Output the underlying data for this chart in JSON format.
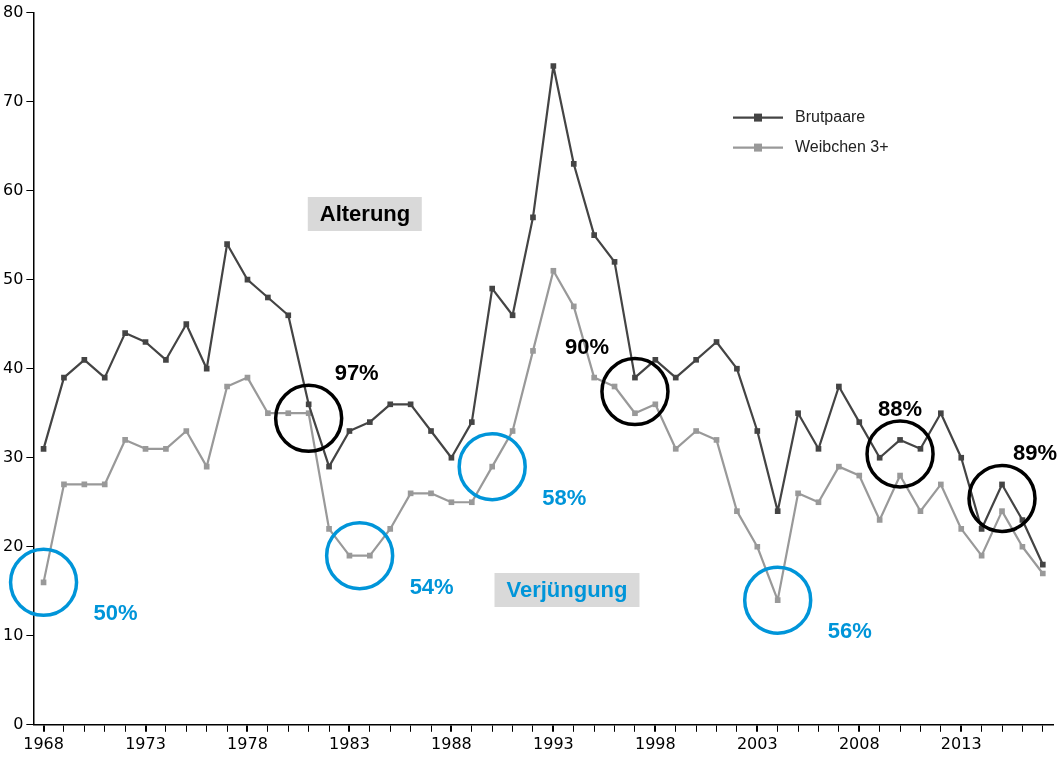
{
  "chart_data": {
    "type": "line",
    "x": [
      1968,
      1969,
      1970,
      1971,
      1972,
      1973,
      1974,
      1975,
      1976,
      1977,
      1978,
      1979,
      1980,
      1981,
      1982,
      1983,
      1984,
      1985,
      1986,
      1987,
      1988,
      1989,
      1990,
      1991,
      1992,
      1993,
      1994,
      1995,
      1996,
      1997,
      1998,
      1999,
      2000,
      2001,
      2002,
      2003,
      2004,
      2005,
      2006,
      2007,
      2008,
      2009,
      2010,
      2011,
      2012,
      2013,
      2014,
      2015,
      2016,
      2017
    ],
    "series": [
      {
        "name": "Brutpaare",
        "color": "#444444",
        "values": [
          31,
          39,
          41,
          39,
          44,
          43,
          41,
          45,
          40,
          54,
          50,
          48,
          46,
          36,
          29,
          33,
          34,
          36,
          36,
          33,
          30,
          34,
          49,
          46,
          57,
          74,
          63,
          55,
          52,
          39,
          41,
          39,
          41,
          43,
          40,
          33,
          24,
          35,
          31,
          38,
          34,
          30,
          32,
          31,
          35,
          30,
          22,
          27,
          23,
          18
        ]
      },
      {
        "name": "Weibchen 3+",
        "color": "#999999",
        "values": [
          16,
          27,
          27,
          27,
          32,
          31,
          31,
          33,
          29,
          38,
          39,
          35,
          35,
          35,
          22,
          19,
          19,
          22,
          26,
          26,
          25,
          25,
          29,
          33,
          42,
          51,
          47,
          39,
          38,
          35,
          36,
          31,
          33,
          32,
          24,
          20,
          14,
          26,
          25,
          29,
          28,
          23,
          28,
          24,
          27,
          22,
          19,
          24,
          20,
          17
        ]
      }
    ],
    "xlim": [
      1967.5,
      2017.5
    ],
    "xticks": [
      1968,
      {
        "value": 1969,
        "label": null
      },
      {
        "value": 1970,
        "label": null
      },
      {
        "value": 1971,
        "label": null
      },
      {
        "value": 1972,
        "label": null
      },
      1973,
      {
        "value": 1974,
        "label": null
      },
      {
        "value": 1975,
        "label": null
      },
      {
        "value": 1976,
        "label": null
      },
      {
        "value": 1977,
        "label": null
      },
      1978,
      {
        "value": 1979,
        "label": null
      },
      {
        "value": 1980,
        "label": null
      },
      {
        "value": 1981,
        "label": null
      },
      {
        "value": 1982,
        "label": null
      },
      1983,
      {
        "value": 1984,
        "label": null
      },
      {
        "value": 1985,
        "label": null
      },
      {
        "value": 1986,
        "label": null
      },
      {
        "value": 1987,
        "label": null
      },
      1988,
      {
        "value": 1989,
        "label": null
      },
      {
        "value": 1990,
        "label": null
      },
      {
        "value": 1991,
        "label": null
      },
      {
        "value": 1992,
        "label": null
      },
      1993,
      {
        "value": 1994,
        "label": null
      },
      {
        "value": 1995,
        "label": null
      },
      {
        "value": 1996,
        "label": null
      },
      {
        "value": 1997,
        "label": null
      },
      1998,
      {
        "value": 1999,
        "label": null
      },
      {
        "value": 2000,
        "label": null
      },
      {
        "value": 2001,
        "label": null
      },
      {
        "value": 2002,
        "label": null
      },
      2003,
      {
        "value": 2004,
        "label": null
      },
      {
        "value": 2005,
        "label": null
      },
      {
        "value": 2006,
        "label": null
      },
      {
        "value": 2007,
        "label": null
      },
      2008,
      {
        "value": 2009,
        "label": null
      },
      {
        "value": 2010,
        "label": null
      },
      {
        "value": 2011,
        "label": null
      },
      {
        "value": 2012,
        "label": null
      },
      2013,
      {
        "value": 2014,
        "label": null
      },
      {
        "value": 2015,
        "label": null
      },
      {
        "value": 2016,
        "label": null
      },
      {
        "value": 2017,
        "label": null
      }
    ],
    "ylim": [
      0,
      80
    ],
    "yticks": [
      0,
      10,
      20,
      30,
      40,
      50,
      60,
      70,
      80
    ],
    "grid": false,
    "legend": "top right",
    "marker": "square",
    "line_style": "solid",
    "annotations": [
      "Alterung",
      "Verjüngung",
      {
        "text": "50%",
        "x": 1968,
        "y": 16
      },
      {
        "text": "97%",
        "x": 1981,
        "y": 36
      },
      {
        "text": "54%",
        "x": 1983.5,
        "y": 19
      },
      {
        "text": "58%",
        "x": 1990,
        "y": 29
      },
      {
        "text": "90%",
        "x": 1997,
        "y": 39
      },
      {
        "text": "56%",
        "x": 2004,
        "y": 14
      },
      {
        "text": "88%",
        "x": 2010,
        "y": 32
      },
      {
        "text": "89%",
        "x": 2015,
        "y": 27
      }
    ]
  }
}
